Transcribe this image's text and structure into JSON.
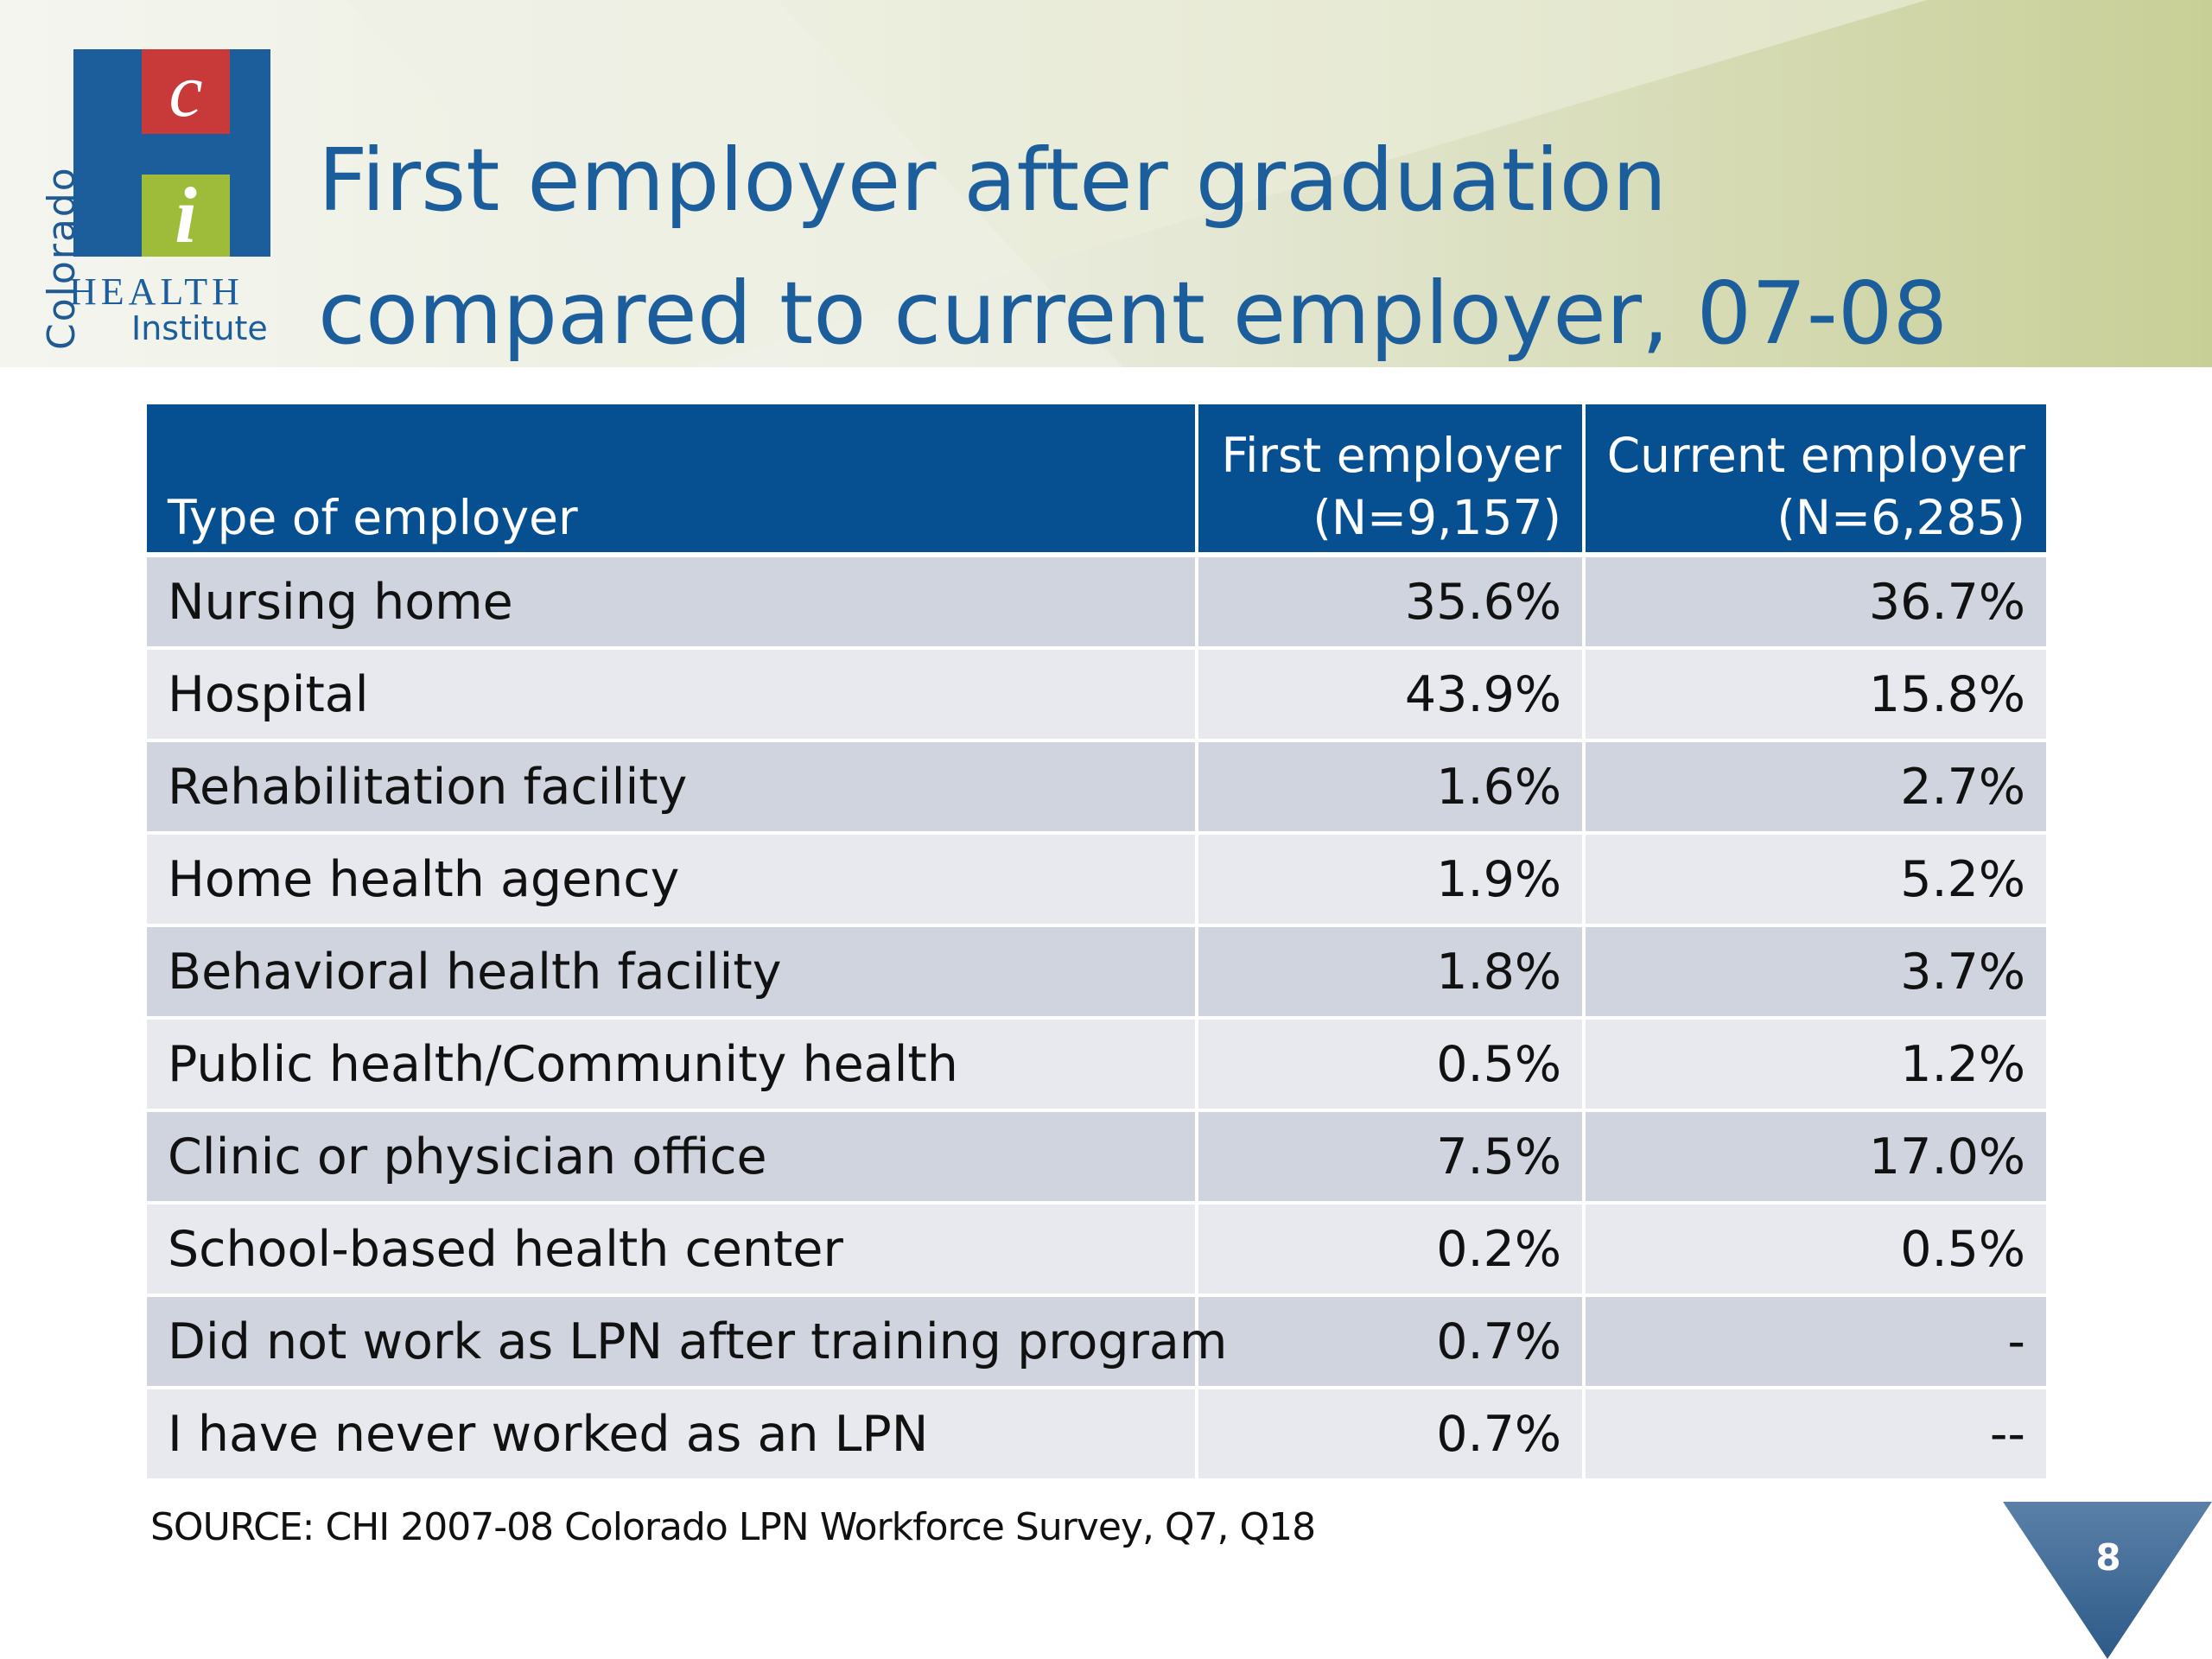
{
  "logo": {
    "side_text": "Colorado",
    "top_letter": "c",
    "bottom_letter": "i",
    "health_text": "HEALTH",
    "institute_text": "Institute"
  },
  "title": {
    "line1": "First employer after graduation",
    "line2": "compared to current employer, 07-08"
  },
  "table": {
    "header": {
      "col1": "Type of employer",
      "col2_line1": "First employer",
      "col2_line2": "(N=9,157)",
      "col3_line1": "Current employer",
      "col3_line2": "(N=6,285)"
    },
    "rows": [
      {
        "type": "Nursing home",
        "first": "35.6%",
        "current": "36.7%"
      },
      {
        "type": "Hospital",
        "first": "43.9%",
        "current": "15.8%"
      },
      {
        "type": "Rehabilitation facility",
        "first": "1.6%",
        "current": "2.7%"
      },
      {
        "type": "Home health agency",
        "first": "1.9%",
        "current": "5.2%"
      },
      {
        "type": "Behavioral health facility",
        "first": "1.8%",
        "current": "3.7%"
      },
      {
        "type": "Public health/Community health",
        "first": "0.5%",
        "current": "1.2%"
      },
      {
        "type": "Clinic or physician office",
        "first": "7.5%",
        "current": "17.0%"
      },
      {
        "type": "School-based health center",
        "first": "0.2%",
        "current": "0.5%"
      },
      {
        "type": "Did not work as LPN after training program",
        "first": "0.7%",
        "current": "-"
      },
      {
        "type": "I have never worked as an LPN",
        "first": "0.7%",
        "current": "--"
      }
    ]
  },
  "source": "SOURCE: CHI 2007-08 Colorado LPN Workforce Survey, Q7, Q18",
  "page_number": "8",
  "colors": {
    "title_blue": "#1c5e9c",
    "header_blue": "#064f91",
    "row_odd": "#cfd4de",
    "row_even": "#e8e9ee",
    "logo_red": "#c8393a",
    "logo_green": "#9fbb3a",
    "page_triangle": "#3d6793"
  }
}
